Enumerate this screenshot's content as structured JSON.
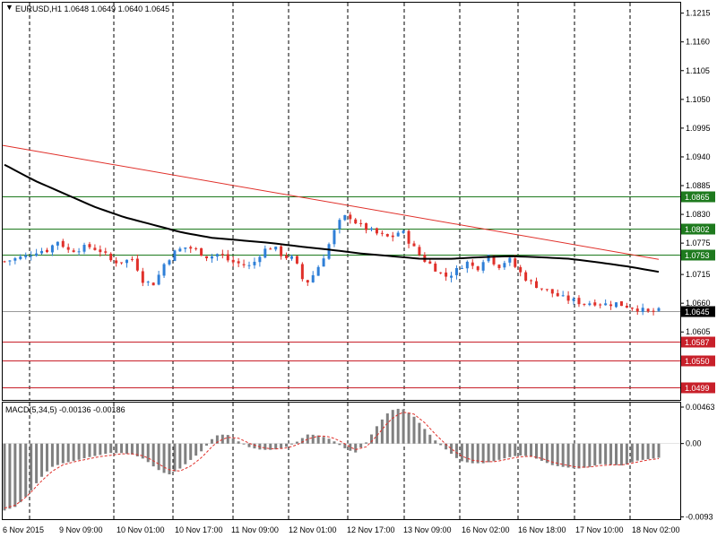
{
  "header": {
    "symbol_label": "EURUSD,H1 1.0648 1.0649 1.0640 1.0645",
    "macd_label": "MACD(5,34,5) -0.00136 -0.00186"
  },
  "colors": {
    "bull": "#2f7fd7",
    "bear": "#e0302a",
    "sma": "#000000",
    "trend": "#e0302a",
    "support": "#c8202a",
    "resistance": "#1e7a1e",
    "grid": "#000000",
    "current_price": "#9a9a9a",
    "macd_bar": "#808080",
    "macd_signal": "#e0302a"
  },
  "chart_data": [
    {
      "type": "candlestick",
      "title": "EURUSD,H1",
      "ylim": [
        1.0475,
        1.1235
      ],
      "y_ticks": [
        "1.1215",
        "1.1160",
        "1.1105",
        "1.1050",
        "1.0995",
        "1.0940",
        "1.0885",
        "1.0830",
        "1.0775",
        "1.0715",
        "1.0660",
        "1.0605"
      ],
      "x_ticks": [
        "6 Nov 2015",
        "9 Nov 09:00",
        "10 Nov 01:00",
        "10 Nov 17:00",
        "11 Nov 09:00",
        "12 Nov 01:00",
        "12 Nov 17:00",
        "13 Nov 09:00",
        "16 Nov 02:00",
        "16 Nov 18:00",
        "17 Nov 10:00",
        "18 Nov 02:00"
      ],
      "close_anchors": [
        1.074,
        1.0745,
        1.075,
        1.076,
        1.0762,
        1.078,
        1.076,
        1.0765,
        1.0768,
        1.076,
        1.074,
        1.074,
        1.0745,
        1.07,
        1.0698,
        1.074,
        1.076,
        1.0768,
        1.076,
        1.0748,
        1.0755,
        1.074,
        1.0735,
        1.073,
        1.076,
        1.0768,
        1.075,
        1.0745,
        1.0695,
        1.072,
        1.076,
        1.081,
        1.083,
        1.081,
        1.08,
        1.079,
        1.0785,
        1.08,
        1.077,
        1.0745,
        1.073,
        1.071,
        1.072,
        1.074,
        1.0725,
        1.0755,
        1.073,
        1.0745,
        1.072,
        1.07,
        1.069,
        1.068,
        1.067,
        1.0665,
        1.066,
        1.0662,
        1.0658,
        1.066,
        1.0655,
        1.065,
        1.0642,
        1.0645
      ],
      "sma_anchors": [
        1.0925,
        1.0895,
        1.087,
        1.0845,
        1.0825,
        1.081,
        1.0795,
        1.0785,
        1.078,
        1.0775,
        1.0768,
        1.0762,
        1.0755,
        1.075,
        1.0745,
        1.0745,
        1.0748,
        1.075,
        1.0748,
        1.0745,
        1.0738,
        1.073,
        1.072
      ],
      "trendline": [
        1.0962,
        1.0744
      ],
      "levels": [
        {
          "value": "1.0865",
          "kind": "resistance"
        },
        {
          "value": "1.0802",
          "kind": "resistance"
        },
        {
          "value": "1.0753",
          "kind": "resistance"
        },
        {
          "value": "1.0587",
          "kind": "support"
        },
        {
          "value": "1.0550",
          "kind": "support"
        },
        {
          "value": "1.0499",
          "kind": "support"
        }
      ],
      "current_price": "1.0645"
    },
    {
      "type": "bar",
      "title": "MACD(5,34,5)",
      "ylim": [
        -0.0096,
        0.0052
      ],
      "y_ticks": [
        "0.00463",
        "0.00",
        "-0.0093"
      ],
      "bars_count": 124,
      "bar_anchors": [
        -0.0085,
        -0.008,
        -0.0065,
        -0.0045,
        -0.003,
        -0.0025,
        -0.0022,
        -0.0018,
        -0.0015,
        -0.0012,
        -0.0012,
        -0.0014,
        -0.002,
        -0.0032,
        -0.004,
        -0.0032,
        -0.002,
        -0.0008,
        0.001,
        0.0012,
        0.0003,
        -0.0005,
        -0.0008,
        -0.0008,
        -0.0005,
        0.0002,
        0.0012,
        0.001,
        0.0005,
        -0.0005,
        -0.0012,
        0.0002,
        0.0025,
        0.0042,
        0.0045,
        0.0035,
        0.0018,
        0.0002,
        -0.001,
        -0.0022,
        -0.0025,
        -0.0025,
        -0.0022,
        -0.0018,
        -0.0015,
        -0.0016,
        -0.0022,
        -0.0028,
        -0.003,
        -0.0032,
        -0.003,
        -0.0026,
        -0.0027,
        -0.0028,
        -0.0022,
        -0.002,
        -0.0018
      ],
      "signal_anchors": [
        -0.0082,
        -0.0078,
        -0.0066,
        -0.005,
        -0.0036,
        -0.0027,
        -0.0023,
        -0.002,
        -0.0017,
        -0.0015,
        -0.0013,
        -0.0013,
        -0.0016,
        -0.0024,
        -0.0033,
        -0.0035,
        -0.0028,
        -0.0016,
        0.0,
        0.0008,
        0.0007,
        0.0,
        -0.0005,
        -0.0007,
        -0.0006,
        -0.0002,
        0.0006,
        0.001,
        0.0008,
        0.0001,
        -0.0008,
        -0.0004,
        0.0012,
        0.003,
        0.004,
        0.0038,
        0.0026,
        0.001,
        -0.0004,
        -0.0015,
        -0.0021,
        -0.0023,
        -0.0023,
        -0.002,
        -0.0017,
        -0.0016,
        -0.0019,
        -0.0024,
        -0.0027,
        -0.003,
        -0.003,
        -0.0028,
        -0.0027,
        -0.0027,
        -0.0024,
        -0.0021,
        -0.0019
      ]
    }
  ]
}
